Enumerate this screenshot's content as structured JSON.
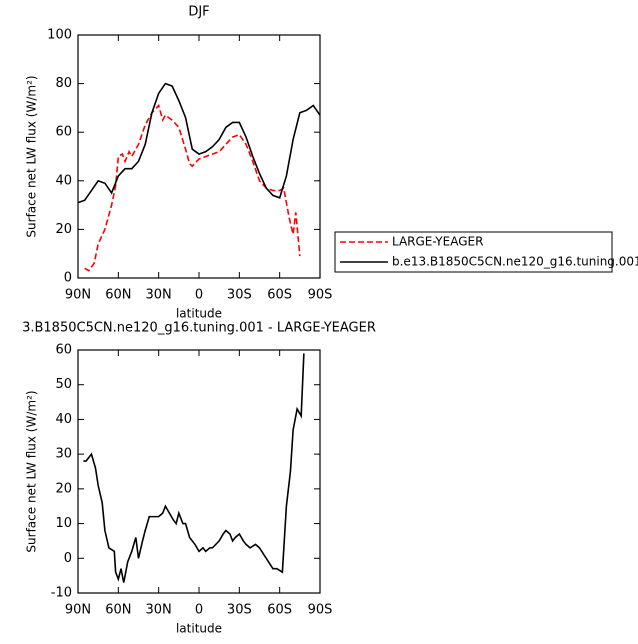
{
  "chart_data": [
    {
      "type": "line",
      "title": "DJF",
      "x_label": "latitude",
      "y_label": "Surface net LW flux (W/m²)",
      "xlim": [
        90,
        -90
      ],
      "ylim": [
        0,
        100
      ],
      "xticks": [
        {
          "value": 90,
          "label": "90N"
        },
        {
          "value": 60,
          "label": "60N"
        },
        {
          "value": 30,
          "label": "30N"
        },
        0,
        {
          "value": -30,
          "label": "30S"
        },
        {
          "value": -60,
          "label": "60S"
        },
        {
          "value": -90,
          "label": "90S"
        }
      ],
      "yticks": [
        0,
        20,
        40,
        60,
        80,
        100
      ],
      "legend": "outside-right",
      "series": [
        {
          "name": "LARGE-YEAGER",
          "color": "#ff0000",
          "line_style": "dashed",
          "x": [
            85,
            82,
            78,
            75,
            70,
            65,
            62,
            60,
            57,
            55,
            52,
            50,
            45,
            40,
            35,
            30,
            27,
            25,
            20,
            15,
            10,
            7,
            5,
            0,
            -5,
            -10,
            -15,
            -20,
            -25,
            -30,
            -35,
            -40,
            -45,
            -50,
            -55,
            -60,
            -63,
            -67,
            -70,
            -72,
            -75
          ],
          "values": [
            4,
            3,
            6,
            14,
            20,
            30,
            38,
            50,
            51,
            48,
            52,
            50,
            55,
            63,
            68,
            71,
            65,
            67,
            65,
            62,
            53,
            47,
            46,
            49,
            50,
            51,
            52,
            55,
            58,
            59,
            55,
            48,
            40,
            37,
            36,
            36,
            37,
            25,
            18,
            27,
            9
          ]
        },
        {
          "name": "b.e13.B1850C5CN.ne120_g16.tuning.001",
          "color": "#000000",
          "line_style": "solid",
          "x": [
            90,
            85,
            80,
            75,
            70,
            65,
            60,
            55,
            50,
            45,
            40,
            35,
            30,
            25,
            20,
            15,
            10,
            5,
            0,
            -5,
            -10,
            -15,
            -20,
            -25,
            -30,
            -35,
            -40,
            -45,
            -50,
            -55,
            -60,
            -65,
            -70,
            -75,
            -80,
            -85,
            -90
          ],
          "values": [
            31,
            32,
            36,
            40,
            39,
            35,
            42,
            45,
            45,
            48,
            55,
            68,
            76,
            80,
            79,
            73,
            66,
            53,
            51,
            52,
            54,
            57,
            62,
            64,
            64,
            58,
            50,
            43,
            37,
            34,
            33,
            42,
            57,
            68,
            69,
            71,
            67
          ]
        }
      ]
    },
    {
      "type": "line",
      "title": "3.B1850C5CN.ne120_g16.tuning.001 - LARGE-YEAGER",
      "x_label": "latitude",
      "y_label": "Surface net LW flux (W/m²)",
      "xlim": [
        90,
        -90
      ],
      "ylim": [
        -10,
        60
      ],
      "xticks": [
        {
          "value": 90,
          "label": "90N"
        },
        {
          "value": 60,
          "label": "60N"
        },
        {
          "value": 30,
          "label": "30N"
        },
        0,
        {
          "value": -30,
          "label": "30S"
        },
        {
          "value": -60,
          "label": "60S"
        },
        {
          "value": -90,
          "label": "90S"
        }
      ],
      "yticks": [
        -10,
        0,
        10,
        20,
        30,
        40,
        50,
        60
      ],
      "series": [
        {
          "color": "#000000",
          "line_style": "solid",
          "x": [
            86,
            84,
            80,
            77,
            75,
            72,
            70,
            67,
            63,
            62,
            60,
            58,
            56,
            53,
            50,
            47,
            45,
            42,
            40,
            37,
            33,
            30,
            27,
            25,
            22,
            19,
            17,
            15,
            12,
            10,
            7,
            5,
            3,
            0,
            -3,
            -5,
            -8,
            -10,
            -15,
            -18,
            -20,
            -23,
            -25,
            -27,
            -30,
            -33,
            -35,
            -38,
            -42,
            -45,
            -50,
            -55,
            -58,
            -62,
            -65,
            -68,
            -70,
            -73,
            -76,
            -78
          ],
          "values": [
            28,
            28,
            30,
            26,
            21,
            16,
            8,
            3,
            2,
            -4,
            -6,
            -3,
            -7,
            -1,
            2,
            6,
            0,
            5,
            8,
            12,
            12,
            12,
            13,
            15,
            13,
            11,
            10,
            13,
            10,
            10,
            6,
            5,
            4,
            2,
            3,
            2,
            3,
            3,
            5,
            7,
            8,
            7,
            5,
            6,
            7,
            5,
            4,
            3,
            4,
            3,
            0,
            -3,
            -3,
            -4,
            15,
            25,
            37,
            43,
            41,
            59
          ]
        }
      ]
    }
  ]
}
